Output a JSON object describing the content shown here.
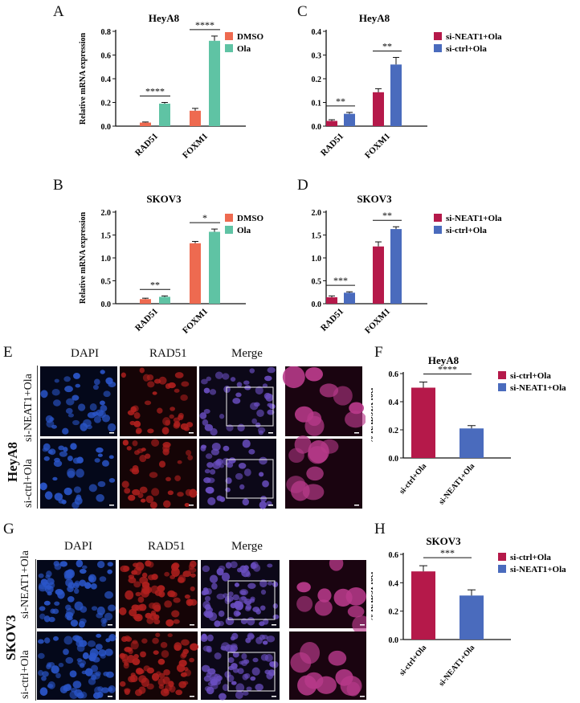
{
  "panels": {
    "A": "A",
    "B": "B",
    "C": "C",
    "D": "D",
    "E": "E",
    "F": "F",
    "G": "G",
    "H": "H"
  },
  "microscopy": {
    "E": {
      "channels": [
        "DAPI",
        "RAD51",
        "Merge"
      ],
      "cell_line": "HeyA8",
      "rows": [
        "si-NEAT1+Ola",
        "si-ctrl+Ola"
      ]
    },
    "G": {
      "channels": [
        "DAPI",
        "RAD51",
        "Merge"
      ],
      "cell_line": "SKOV3",
      "rows": [
        "si-NEAT1+Ola",
        "si-ctrl+Ola"
      ]
    }
  },
  "chart_data": [
    {
      "id": "A",
      "type": "bar",
      "title": "HeyA8",
      "xlabel": "",
      "ylabel": "Relative mRNA expression",
      "ylim": [
        0,
        0.8
      ],
      "yticks": [
        "0.0",
        "0.2",
        "0.4",
        "0.6",
        "0.8"
      ],
      "categories": [
        "RAD51",
        "FOXM1"
      ],
      "series": [
        {
          "name": "DMSO",
          "color": "#ee6a50",
          "values": [
            0.03,
            0.13
          ],
          "errors": [
            0.005,
            0.02
          ]
        },
        {
          "name": "Ola",
          "color": "#5fc3a4",
          "values": [
            0.19,
            0.72
          ],
          "errors": [
            0.01,
            0.04
          ]
        }
      ],
      "significance": [
        "****",
        "****"
      ],
      "legend": "top-right"
    },
    {
      "id": "B",
      "type": "bar",
      "title": "SKOV3",
      "xlabel": "",
      "ylabel": "Relative mRNA expression",
      "ylim": [
        0,
        2.0
      ],
      "yticks": [
        "0.0",
        "0.5",
        "1.0",
        "1.5",
        "2.0"
      ],
      "categories": [
        "RAD51",
        "FOXM1"
      ],
      "series": [
        {
          "name": "DMSO",
          "color": "#ee6a50",
          "values": [
            0.1,
            1.32
          ],
          "errors": [
            0.02,
            0.04
          ]
        },
        {
          "name": "Ola",
          "color": "#5fc3a4",
          "values": [
            0.15,
            1.57
          ],
          "errors": [
            0.02,
            0.06
          ]
        }
      ],
      "significance": [
        "**",
        "*"
      ],
      "legend": "top-right"
    },
    {
      "id": "C",
      "type": "bar",
      "title": "HeyA8",
      "xlabel": "",
      "ylabel": "Relative mRNA expression",
      "ylim": [
        0,
        0.4
      ],
      "yticks": [
        "0.0",
        "0.1",
        "0.2",
        "0.3",
        "0.4"
      ],
      "categories": [
        "RAD51",
        "FOXM1"
      ],
      "series": [
        {
          "name": "si-NEAT1+Ola",
          "color": "#b5194a",
          "values": [
            0.022,
            0.143
          ],
          "errors": [
            0.005,
            0.015
          ]
        },
        {
          "name": "si-ctrl+Ola",
          "color": "#4a6bbd",
          "values": [
            0.052,
            0.26
          ],
          "errors": [
            0.006,
            0.03
          ]
        }
      ],
      "significance": [
        "**",
        "**"
      ],
      "legend": "top-right"
    },
    {
      "id": "D",
      "type": "bar",
      "title": "SKOV3",
      "xlabel": "",
      "ylabel": "Relative mRNA expression",
      "ylim": [
        0,
        2.0
      ],
      "yticks": [
        "0.0",
        "0.5",
        "1.0",
        "1.5",
        "2.0"
      ],
      "categories": [
        "RAD51",
        "FOXM1"
      ],
      "series": [
        {
          "name": "si-NEAT1+Ola",
          "color": "#b5194a",
          "values": [
            0.14,
            1.25
          ],
          "errors": [
            0.03,
            0.1
          ]
        },
        {
          "name": "si-ctrl+Ola",
          "color": "#4a6bbd",
          "values": [
            0.24,
            1.63
          ],
          "errors": [
            0.02,
            0.05
          ]
        }
      ],
      "significance": [
        "***",
        "**"
      ],
      "legend": "top-right"
    },
    {
      "id": "F",
      "type": "bar",
      "title": "HeyA8",
      "xlabel": "",
      "ylabel": "% RAD51X foci",
      "ylim": [
        0,
        0.6
      ],
      "yticks": [
        "0.0",
        "0.2",
        "0.4",
        "0.6"
      ],
      "categories": [
        "si-ctrl+Ola",
        "si-NEAT1+Ola"
      ],
      "series": [
        {
          "name": "si-ctrl+Ola",
          "color": "#b5194a",
          "values": [
            0.5,
            null
          ],
          "errors": [
            0.04,
            null
          ]
        },
        {
          "name": "si-NEAT1+Ola",
          "color": "#4a6bbd",
          "values": [
            null,
            0.21
          ],
          "errors": [
            null,
            0.02
          ]
        }
      ],
      "significance": [
        "****"
      ],
      "legend": "top-right"
    },
    {
      "id": "H",
      "type": "bar",
      "title": "SKOV3",
      "xlabel": "",
      "ylabel": "% RAD51 foci",
      "ylim": [
        0,
        0.6
      ],
      "yticks": [
        "0.0",
        "0.2",
        "0.4",
        "0.6"
      ],
      "categories": [
        "si-ctrl+Ola",
        "si-NEAT1+Ola"
      ],
      "series": [
        {
          "name": "si-ctrl+Ola",
          "color": "#b5194a",
          "values": [
            0.48,
            null
          ],
          "errors": [
            0.04,
            null
          ]
        },
        {
          "name": "si-NEAT1+Ola",
          "color": "#4a6bbd",
          "values": [
            null,
            0.31
          ],
          "errors": [
            null,
            0.04
          ]
        }
      ],
      "significance": [
        "***"
      ],
      "legend": "top-right"
    }
  ]
}
